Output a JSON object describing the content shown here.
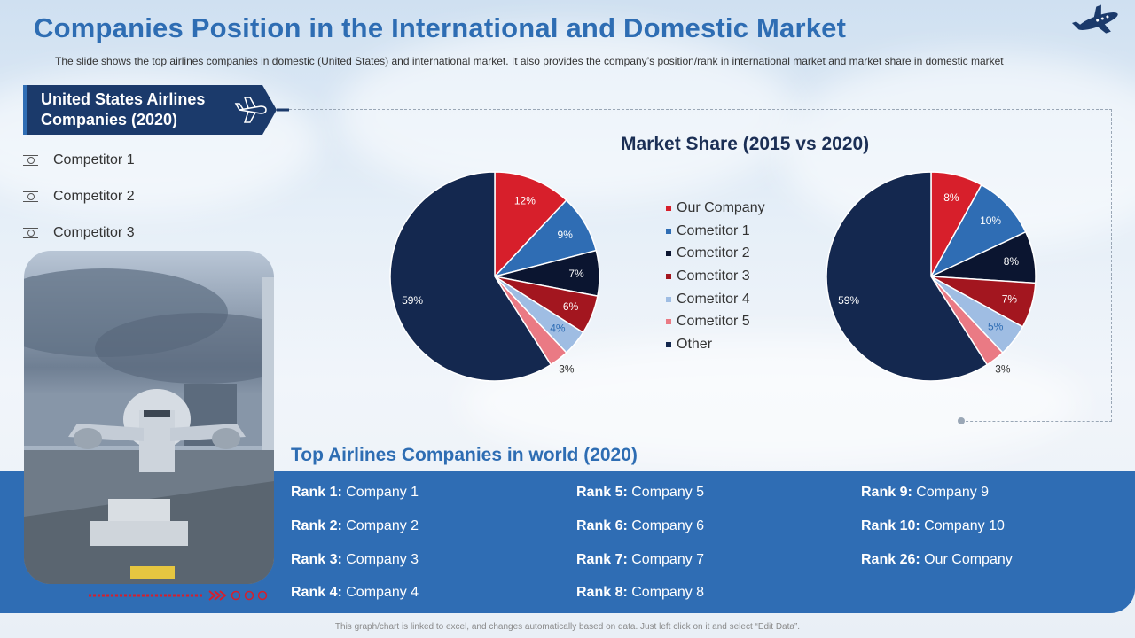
{
  "slide": {
    "title": "Companies Position in the International and Domestic Market",
    "subtitle": "The slide shows the top airlines companies in domestic (United States) and international market. It also provides  the company’s position/rank in international market and market share in domestic market",
    "footer": "This graph/chart is linked to excel, and changes automatically based on data. Just left click on it and select “Edit Data”."
  },
  "us_panel": {
    "heading": "United States Airlines Companies (2020)",
    "competitors": [
      "Competitor 1",
      "Competitor 2",
      "Competitor 3"
    ]
  },
  "top_companies": {
    "heading": "Top Airlines Companies in world (2020)",
    "ranks": [
      {
        "rank": "Rank 1:",
        "company": " Company 1"
      },
      {
        "rank": "Rank 2:",
        "company": " Company 2"
      },
      {
        "rank": "Rank 3:",
        "company": " Company 3"
      },
      {
        "rank": "Rank 4:",
        "company": " Company 4"
      },
      {
        "rank": "Rank 5:",
        "company": " Company 5"
      },
      {
        "rank": "Rank 6:",
        "company": " Company 6"
      },
      {
        "rank": "Rank 7:",
        "company": " Company 7"
      },
      {
        "rank": "Rank 8:",
        "company": " Company 8"
      },
      {
        "rank": "Rank 9:",
        "company": " Company 9"
      },
      {
        "rank": "Rank 10:",
        "company": " Company 10"
      },
      {
        "rank": "Rank 26:",
        "company": " Our Company"
      }
    ]
  },
  "chart_data": {
    "type": "pie",
    "title": "Market Share (2015 vs 2020)",
    "legend_position": "center",
    "categories": [
      "Our Company",
      "Cometitor 1",
      "Cometitor 2",
      "Cometitor 3",
      "Cometitor 4",
      "Cometitor 5",
      "Other"
    ],
    "colors": [
      "#d71f2b",
      "#2f6db4",
      "#0b1530",
      "#a3161f",
      "#9fbde3",
      "#ea7a84",
      "#14284f"
    ],
    "series": [
      {
        "values": [
          12,
          9,
          7,
          6,
          4,
          3,
          59
        ],
        "labels": [
          "12%",
          "9%",
          "7%",
          "6%",
          "4%",
          "3%",
          "59%"
        ]
      },
      {
        "values": [
          8,
          10,
          8,
          7,
          5,
          3,
          59
        ],
        "labels": [
          "8%",
          "10%",
          "8%",
          "7%",
          "5%",
          "3%",
          "59%"
        ]
      }
    ]
  },
  "icons": {
    "logo": "airplane-icon",
    "banner": "airplane-icon"
  }
}
